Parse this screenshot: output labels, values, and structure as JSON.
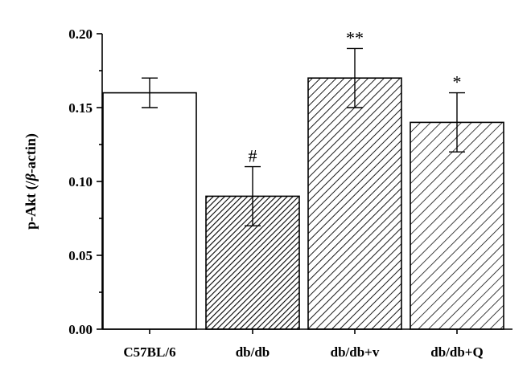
{
  "chart_data": {
    "type": "bar",
    "categories": [
      "C57BL/6",
      "db/db",
      "db/db+v",
      "db/db+Q"
    ],
    "values": [
      0.16,
      0.09,
      0.17,
      0.14
    ],
    "errors": [
      0.01,
      0.02,
      0.02,
      0.02
    ],
    "annotations": [
      "",
      "#",
      "**",
      "*"
    ],
    "fills": [
      "none",
      "dense-hatch",
      "hatch",
      "light-hatch"
    ],
    "ylabel_prefix": "p-Akt (/",
    "ylabel_symbol": "β",
    "ylabel_suffix": "-actin)",
    "ylim": [
      0,
      0.2
    ],
    "yticks": [
      "0.00",
      "0.05",
      "0.10",
      "0.15",
      "0.20"
    ],
    "grid": false,
    "colors": {
      "axis": "#000000",
      "bar_outline": "#000000",
      "background": "#ffffff"
    }
  }
}
